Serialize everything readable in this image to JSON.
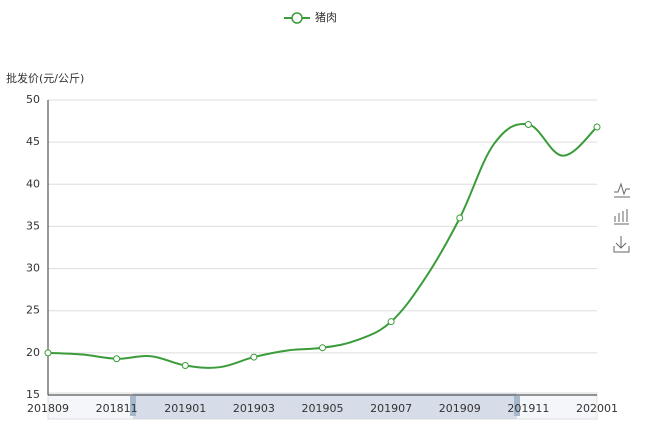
{
  "chart_data": {
    "type": "line",
    "y_label": "批发价(元/公斤)",
    "categories": [
      "201809",
      null,
      "201811",
      null,
      "201901",
      null,
      "201903",
      null,
      "201905",
      null,
      "201907",
      null,
      "201909",
      null,
      "201911",
      null,
      "202001"
    ],
    "series": [
      {
        "name": "猪肉",
        "color": "#3a9c3a",
        "values": [
          20.0,
          19.8,
          19.3,
          19.6,
          18.5,
          18.3,
          19.5,
          20.3,
          20.6,
          21.5,
          23.7,
          28.9,
          36.0,
          44.8,
          47.1,
          43.4,
          46.8
        ]
      }
    ],
    "ylim": [
      15,
      50
    ],
    "yticks": [
      15,
      20,
      25,
      30,
      35,
      40,
      45,
      50
    ],
    "grid": true
  }
}
